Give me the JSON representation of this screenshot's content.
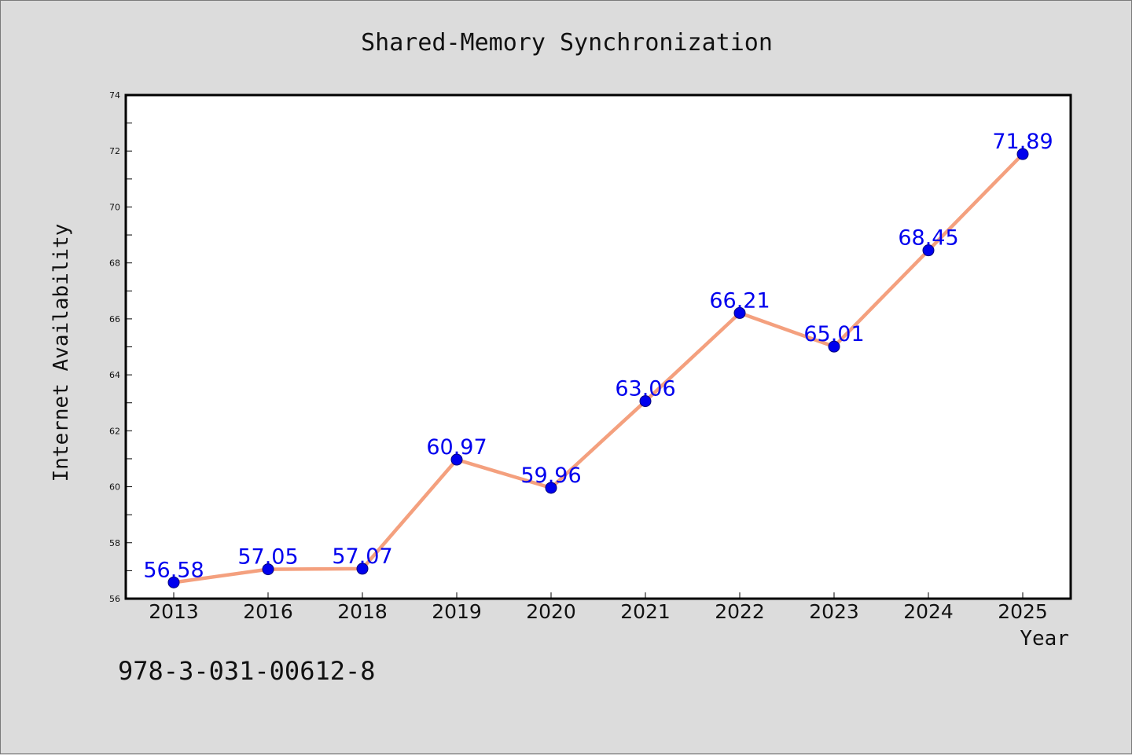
{
  "chart_data": {
    "type": "line",
    "title": "Shared-Memory Synchronization",
    "xlabel": "Year",
    "ylabel": "Internet Availability",
    "categories": [
      "2013",
      "2016",
      "2018",
      "2019",
      "2020",
      "2021",
      "2022",
      "2023",
      "2024",
      "2025"
    ],
    "series": [
      {
        "values": [
          56.58,
          57.05,
          57.07,
          60.97,
          59.96,
          63.06,
          66.21,
          65.01,
          68.45,
          71.89
        ],
        "line_color": "#f4a07e",
        "marker_color": "#0000ee"
      }
    ],
    "data_labels": [
      "56.58",
      "57.05",
      "57.07",
      "60.97",
      "59.96",
      "63.06",
      "66.21",
      "65.01",
      "68.45",
      "71.89"
    ],
    "ylim": [
      56,
      74
    ],
    "yticks": [
      56,
      58,
      60,
      62,
      64,
      66,
      68,
      70,
      72,
      74
    ],
    "grid": false,
    "legend": "none",
    "data_label_color": "#0000ee"
  },
  "footnote": "978-3-031-00612-8",
  "colors": {
    "background": "#dcdcdc",
    "plot_background": "#ffffff",
    "axis": "#000000"
  }
}
